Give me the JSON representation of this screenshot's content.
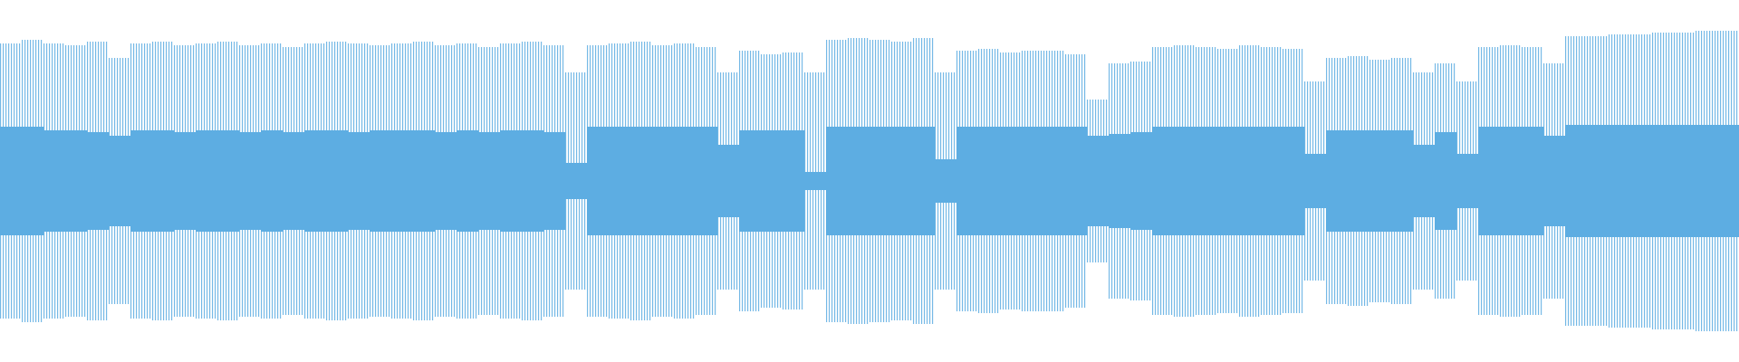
{
  "chart_data": {
    "type": "waveform",
    "color": "#5dade2",
    "peaks": [
      0.76,
      0.78,
      0.76,
      0.75,
      0.77,
      0.68,
      0.76,
      0.77,
      0.75,
      0.76,
      0.77,
      0.75,
      0.76,
      0.74,
      0.76,
      0.77,
      0.76,
      0.75,
      0.76,
      0.77,
      0.75,
      0.76,
      0.74,
      0.76,
      0.77,
      0.75,
      0.6,
      0.75,
      0.76,
      0.77,
      0.75,
      0.76,
      0.74,
      0.6,
      0.72,
      0.7,
      0.71,
      0.6,
      0.78,
      0.79,
      0.78,
      0.77,
      0.79,
      0.6,
      0.72,
      0.73,
      0.71,
      0.72,
      0.72,
      0.7,
      0.45,
      0.65,
      0.66,
      0.74,
      0.75,
      0.74,
      0.73,
      0.75,
      0.74,
      0.73,
      0.55,
      0.68,
      0.69,
      0.67,
      0.68,
      0.6,
      0.65,
      0.55,
      0.74,
      0.75,
      0.74,
      0.65,
      0.8,
      0.8,
      0.81,
      0.81,
      0.82,
      0.82,
      0.83,
      0.83
    ],
    "core": [
      0.3,
      0.3,
      0.28,
      0.28,
      0.27,
      0.25,
      0.28,
      0.28,
      0.27,
      0.28,
      0.28,
      0.27,
      0.28,
      0.27,
      0.28,
      0.28,
      0.27,
      0.28,
      0.28,
      0.28,
      0.27,
      0.28,
      0.27,
      0.28,
      0.28,
      0.27,
      0.1,
      0.3,
      0.3,
      0.3,
      0.3,
      0.3,
      0.3,
      0.2,
      0.28,
      0.28,
      0.28,
      0.05,
      0.3,
      0.3,
      0.3,
      0.3,
      0.3,
      0.12,
      0.3,
      0.3,
      0.3,
      0.3,
      0.3,
      0.3,
      0.25,
      0.26,
      0.27,
      0.3,
      0.3,
      0.3,
      0.3,
      0.3,
      0.3,
      0.3,
      0.15,
      0.28,
      0.28,
      0.28,
      0.28,
      0.2,
      0.27,
      0.15,
      0.3,
      0.3,
      0.3,
      0.25,
      0.31,
      0.31,
      0.31,
      0.31,
      0.31,
      0.31,
      0.31,
      0.31
    ]
  }
}
